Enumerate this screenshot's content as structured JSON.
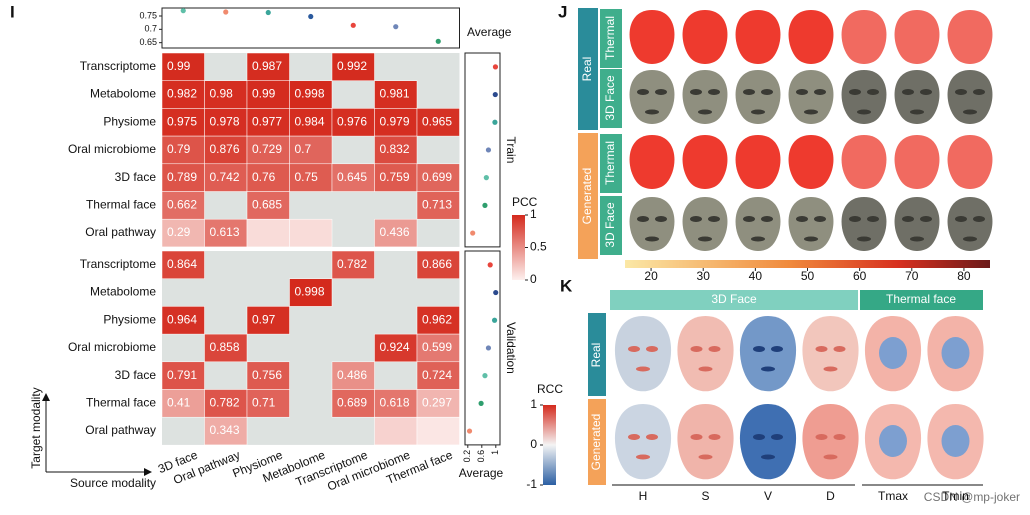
{
  "panel_labels": [
    "I",
    "J",
    "K"
  ],
  "chart_data": [
    {
      "type": "dot",
      "title": "Average",
      "values": [
        0.77,
        0.765,
        0.763,
        0.748,
        0.715,
        0.71,
        0.655
      ],
      "colors": [
        "#5fbfa8",
        "#f08a6e",
        "#3aa59a",
        "#2b5a9e",
        "#e8453c",
        "#6f86b8",
        "#2f9e6e"
      ],
      "ylim": [
        0.63,
        0.78
      ],
      "yticks": [
        0.65,
        0.7,
        0.75
      ]
    },
    {
      "type": "heatmap",
      "group": "Train",
      "rows": [
        "Transcriptome",
        "Metabolome",
        "Physiome",
        "Oral microbiome",
        "3D face",
        "Thermal face",
        "Oral pathway"
      ],
      "values": [
        [
          0.99,
          null,
          0.987,
          null,
          0.992,
          null,
          null
        ],
        [
          0.982,
          0.98,
          0.99,
          0.998,
          null,
          0.981,
          null
        ],
        [
          0.975,
          0.978,
          0.977,
          0.984,
          0.976,
          0.979,
          0.965
        ],
        [
          0.79,
          0.876,
          0.729,
          0.7,
          null,
          0.832,
          null
        ],
        [
          0.789,
          0.742,
          0.76,
          0.75,
          0.645,
          0.759,
          0.699
        ],
        [
          0.662,
          null,
          0.685,
          null,
          null,
          null,
          0.713
        ],
        [
          0.29,
          0.613,
          0.1,
          0.1,
          null,
          0.436,
          null
        ]
      ],
      "value_labels": [
        [
          "0.99",
          null,
          "0.987",
          null,
          "0.992",
          null,
          null
        ],
        [
          "0.982",
          "0.98",
          "0.99",
          "0.998",
          null,
          "0.981",
          null
        ],
        [
          "0.975",
          "0.978",
          "0.977",
          "0.984",
          "0.976",
          "0.979",
          "0.965"
        ],
        [
          "0.79",
          "0.876",
          "0.729",
          "0.7",
          null,
          "0.832",
          null
        ],
        [
          "0.789",
          "0.742",
          "0.76",
          "0.75",
          "0.645",
          "0.759",
          "0.699"
        ],
        [
          "0.662",
          null,
          "0.685",
          null,
          null,
          null,
          "0.713"
        ],
        [
          "0.29",
          "0.613",
          null,
          null,
          null,
          "0.436",
          null
        ]
      ],
      "average": [
        0.99,
        0.985,
        0.975,
        0.79,
        0.73,
        0.69,
        0.34
      ],
      "average_colors": [
        "#e8453c",
        "#2b4a8e",
        "#3aa59a",
        "#6f86b8",
        "#5fbfa8",
        "#2f9e6e",
        "#f08a6e"
      ]
    },
    {
      "type": "heatmap",
      "group": "Validation",
      "rows": [
        "Transcriptome",
        "Metabolome",
        "Physiome",
        "Oral microbiome",
        "3D face",
        "Thermal face",
        "Oral pathway"
      ],
      "columns": [
        "3D face",
        "Oral pathway",
        "Physiome",
        "Metabolome",
        "Transcriptome",
        "Oral microbiome",
        "Thermal face"
      ],
      "values": [
        [
          0.864,
          null,
          null,
          null,
          0.782,
          null,
          0.866
        ],
        [
          null,
          null,
          null,
          0.998,
          null,
          null,
          null
        ],
        [
          0.964,
          null,
          0.97,
          null,
          null,
          null,
          0.962
        ],
        [
          null,
          0.858,
          null,
          null,
          null,
          0.924,
          0.599
        ],
        [
          0.791,
          null,
          0.756,
          null,
          0.486,
          null,
          0.724
        ],
        [
          0.41,
          0.782,
          0.71,
          null,
          0.689,
          0.618,
          0.297
        ],
        [
          null,
          0.343,
          null,
          null,
          null,
          0.15,
          0.05
        ]
      ],
      "value_labels": [
        [
          "0.864",
          null,
          null,
          null,
          "0.782",
          null,
          "0.866"
        ],
        [
          null,
          null,
          null,
          "0.998",
          null,
          null,
          null
        ],
        [
          "0.964",
          null,
          "0.97",
          null,
          null,
          null,
          "0.962"
        ],
        [
          null,
          "0.858",
          null,
          null,
          null,
          "0.924",
          "0.599"
        ],
        [
          "0.791",
          null,
          "0.756",
          null,
          "0.486",
          null,
          "0.724"
        ],
        [
          "0.41",
          "0.782",
          "0.71",
          null,
          "0.689",
          "0.618",
          "0.297"
        ],
        [
          null,
          "0.343",
          null,
          null,
          null,
          null,
          null
        ]
      ],
      "average": [
        0.84,
        0.998,
        0.965,
        0.79,
        0.69,
        0.58,
        0.25
      ],
      "average_colors": [
        "#e8453c",
        "#2b4a8e",
        "#3aa59a",
        "#6f86b8",
        "#5fbfa8",
        "#2f9e6e",
        "#f08a6e"
      ],
      "average_title": "Average",
      "average_xlim": [
        0.12,
        1.12
      ],
      "average_xticks": [
        0.2,
        0.6,
        1
      ],
      "x_axis_label": "Source modality",
      "y_axis_label": "Target modality"
    },
    {
      "type": "colorbar",
      "title": "PCC",
      "lim": [
        0,
        1
      ],
      "ticks": [
        0,
        0.5,
        1
      ]
    }
  ],
  "panel_j": {
    "groups": [
      "Real",
      "Generated"
    ],
    "modalities": [
      "Thermal",
      "3D Face",
      "Thermal",
      "3D Face"
    ],
    "colorbar": {
      "lim": [
        15,
        85
      ],
      "ticks": [
        20,
        30,
        40,
        50,
        60,
        70,
        80
      ]
    }
  },
  "panel_k": {
    "headers": [
      "3D Face",
      "Thermal face"
    ],
    "groups": [
      "Real",
      "Generated"
    ],
    "columns": [
      "H",
      "S",
      "V",
      "D",
      "Tmax",
      "Tmin"
    ],
    "colorbar": {
      "title": "RCC",
      "lim": [
        -1,
        1
      ],
      "ticks": [
        -1,
        0,
        1
      ]
    }
  },
  "watermark": "CSDN @mp-joker"
}
